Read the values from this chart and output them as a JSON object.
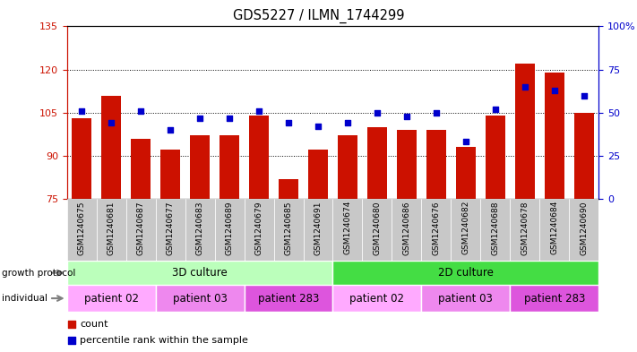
{
  "title": "GDS5227 / ILMN_1744299",
  "samples": [
    "GSM1240675",
    "GSM1240681",
    "GSM1240687",
    "GSM1240677",
    "GSM1240683",
    "GSM1240689",
    "GSM1240679",
    "GSM1240685",
    "GSM1240691",
    "GSM1240674",
    "GSM1240680",
    "GSM1240686",
    "GSM1240676",
    "GSM1240682",
    "GSM1240688",
    "GSM1240678",
    "GSM1240684",
    "GSM1240690"
  ],
  "counts": [
    103,
    111,
    96,
    92,
    97,
    97,
    104,
    82,
    92,
    97,
    100,
    99,
    99,
    93,
    104,
    122,
    119,
    105
  ],
  "percentiles": [
    51,
    44,
    51,
    40,
    47,
    47,
    51,
    44,
    42,
    44,
    50,
    48,
    50,
    33,
    52,
    65,
    63,
    60
  ],
  "ylim_left": [
    75,
    135
  ],
  "ylim_right": [
    0,
    100
  ],
  "yticks_left": [
    75,
    90,
    105,
    120,
    135
  ],
  "yticks_right": [
    0,
    25,
    50,
    75,
    100
  ],
  "bar_color": "#cc1100",
  "dot_color": "#0000cc",
  "growth_protocol_groups": [
    {
      "label": "3D culture",
      "start": 0,
      "end": 9,
      "color": "#bbffbb"
    },
    {
      "label": "2D culture",
      "start": 9,
      "end": 18,
      "color": "#44dd44"
    }
  ],
  "individual_colors": {
    "patient 02": "#ffaaff",
    "patient 03": "#ee88ee",
    "patient 283": "#dd55dd"
  },
  "individual_groups": [
    {
      "label": "patient 02",
      "start": 0,
      "end": 3
    },
    {
      "label": "patient 03",
      "start": 3,
      "end": 6
    },
    {
      "label": "patient 283",
      "start": 6,
      "end": 9
    },
    {
      "label": "patient 02",
      "start": 9,
      "end": 12
    },
    {
      "label": "patient 03",
      "start": 12,
      "end": 15
    },
    {
      "label": "patient 283",
      "start": 15,
      "end": 18
    }
  ],
  "background_color": "#ffffff",
  "plot_bg": "#ffffff",
  "tick_bg": "#c8c8c8",
  "gridline_yticks": [
    90,
    105,
    120
  ]
}
